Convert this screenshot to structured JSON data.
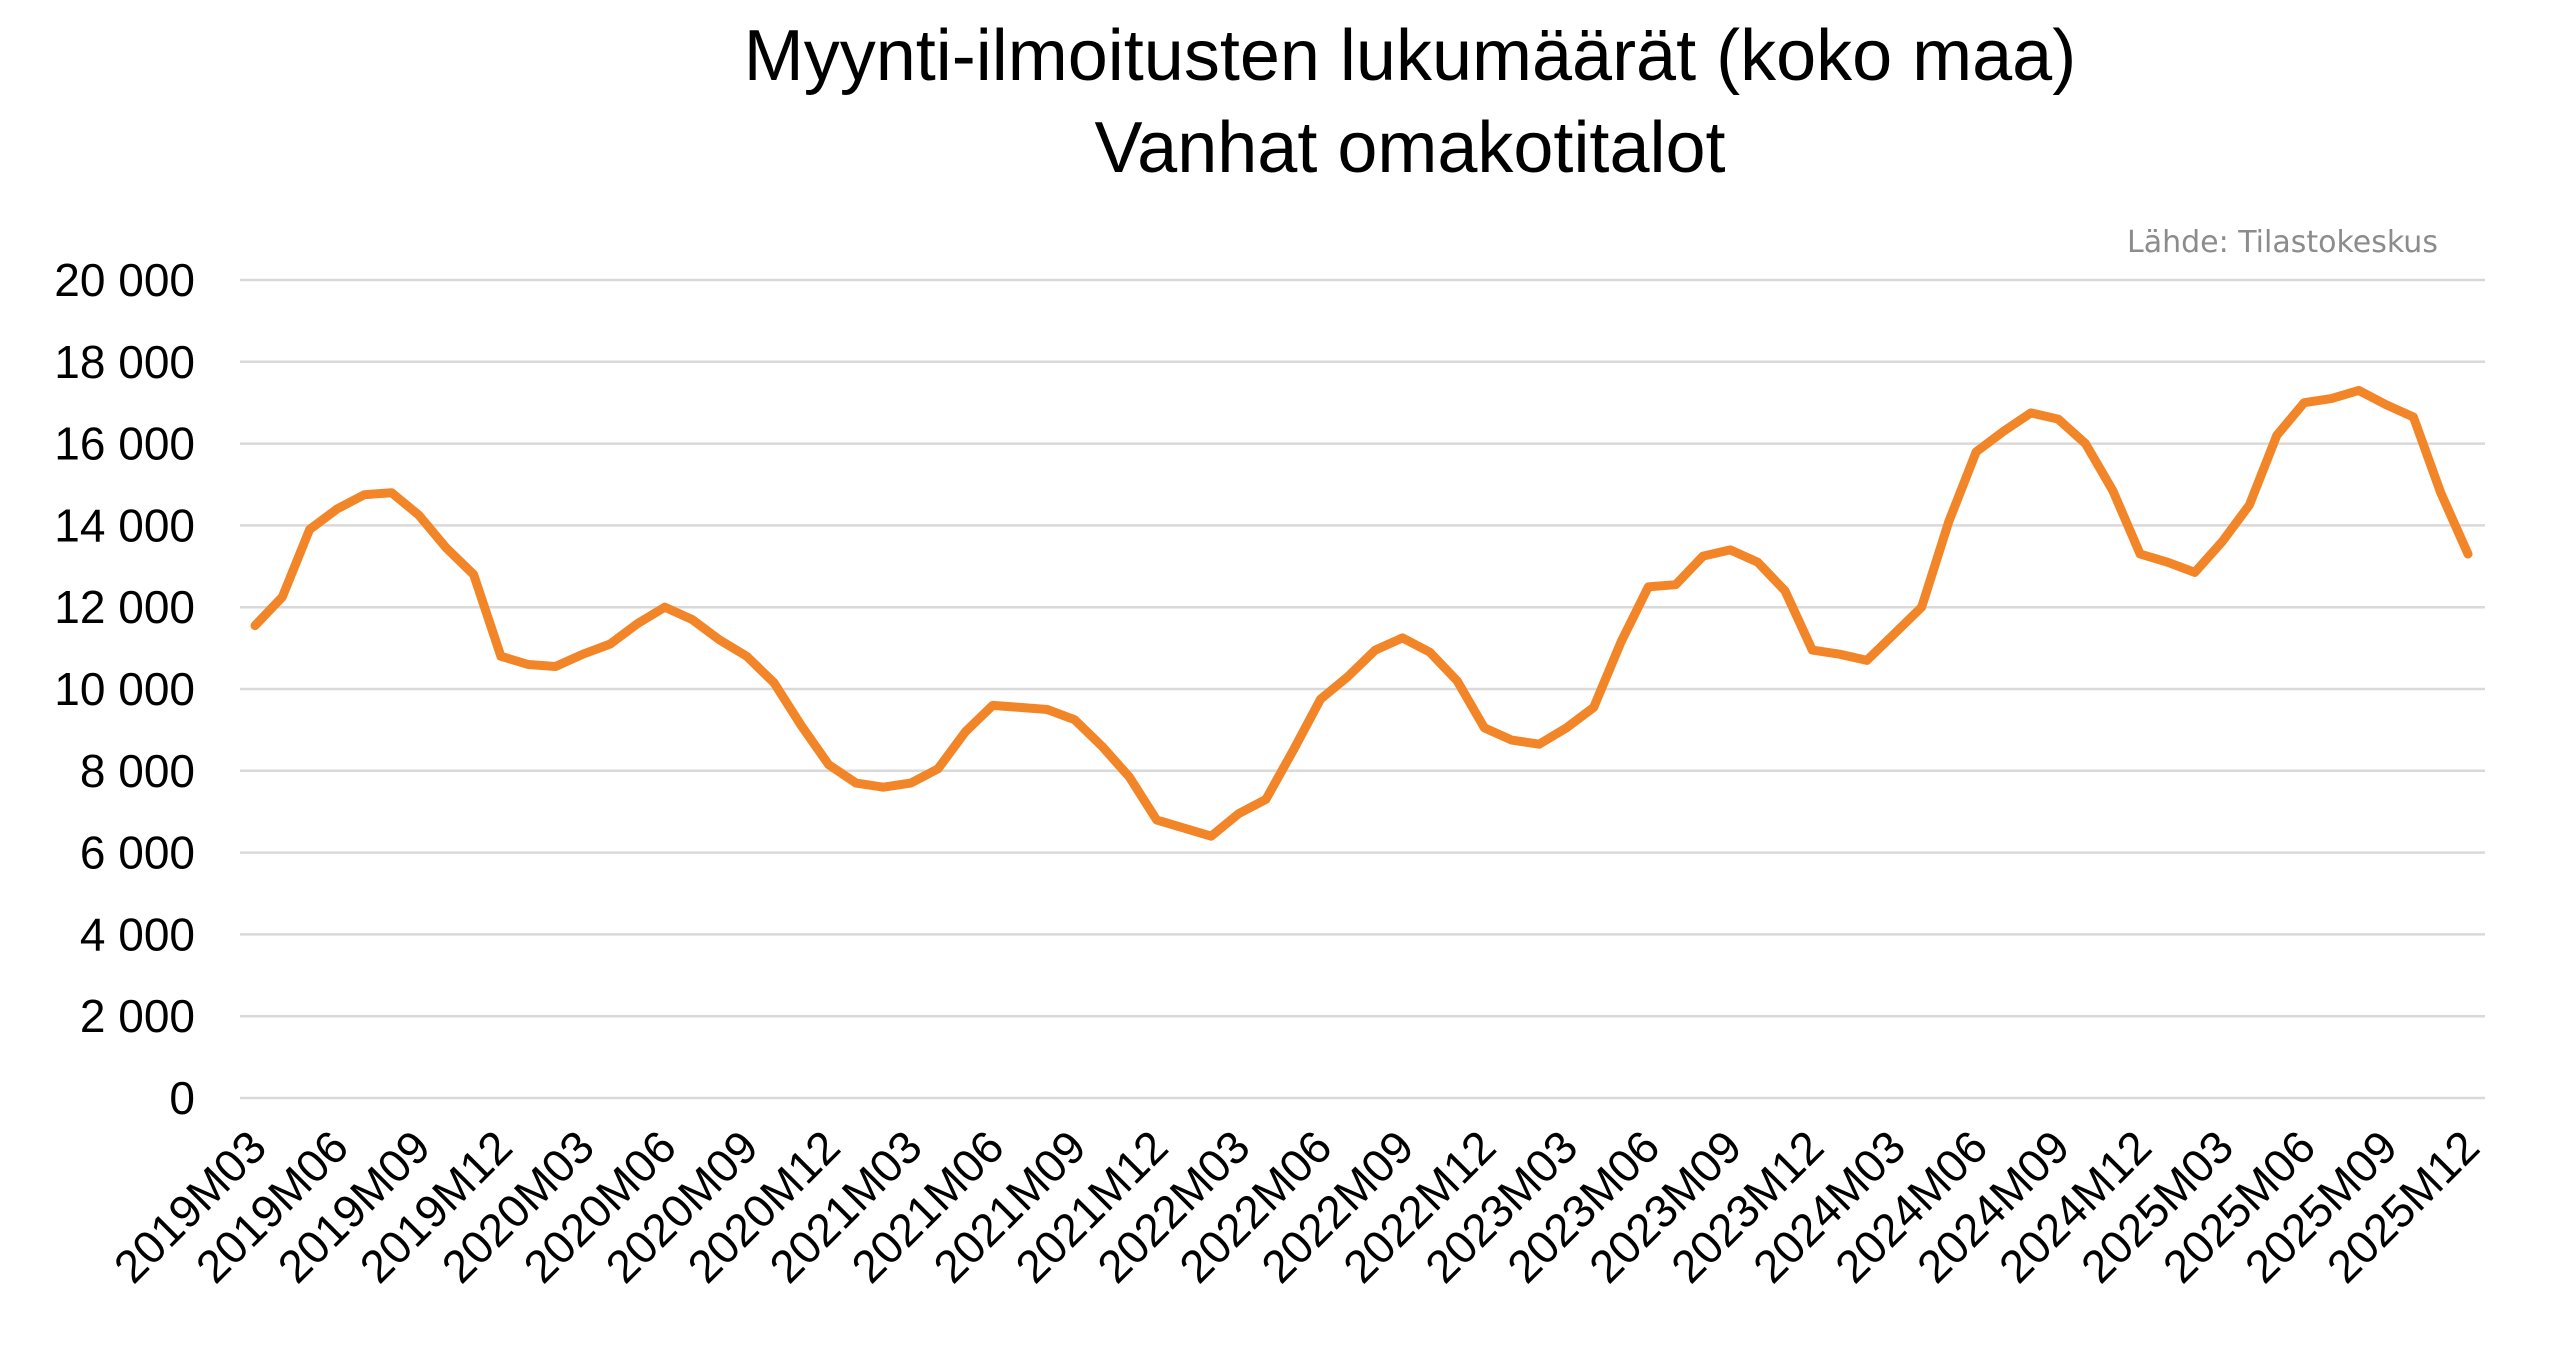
{
  "chart_data": {
    "type": "line",
    "title": "Myynti-ilmoitusten lukumäärät (koko maa)",
    "subtitle": "Vanhat omakotitalot",
    "source": "Lähde: Tilastokeskus",
    "xlabel": "",
    "ylabel": "",
    "ylim": [
      0,
      20000
    ],
    "y_ticks": [
      0,
      2000,
      4000,
      6000,
      8000,
      10000,
      12000,
      14000,
      16000,
      18000,
      20000
    ],
    "y_tick_labels": [
      "0",
      "2 000",
      "4 000",
      "6 000",
      "8 000",
      "10 000",
      "12 000",
      "14 000",
      "16 000",
      "18 000",
      "20 000"
    ],
    "x_tick_labels": [
      "2019M03",
      "2019M06",
      "2019M09",
      "2019M12",
      "2020M03",
      "2020M06",
      "2020M09",
      "2020M12",
      "2021M03",
      "2021M06",
      "2021M09",
      "2021M12",
      "2022M03",
      "2022M06",
      "2022M09",
      "2022M12",
      "2023M03",
      "2023M06",
      "2023M09",
      "2023M12",
      "2024M03",
      "2024M06",
      "2024M09",
      "2024M12",
      "2025M03",
      "2025M06",
      "2025M09",
      "2025M12"
    ],
    "grid": true,
    "legend": "none",
    "line_color": "#F28527",
    "x": [
      "2019M03",
      "2019M04",
      "2019M05",
      "2019M06",
      "2019M07",
      "2019M08",
      "2019M09",
      "2019M10",
      "2019M11",
      "2019M12",
      "2020M01",
      "2020M02",
      "2020M03",
      "2020M04",
      "2020M05",
      "2020M06",
      "2020M07",
      "2020M08",
      "2020M09",
      "2020M10",
      "2020M11",
      "2020M12",
      "2021M01",
      "2021M02",
      "2021M03",
      "2021M04",
      "2021M05",
      "2021M06",
      "2021M07",
      "2021M08",
      "2021M09",
      "2021M10",
      "2021M11",
      "2021M12",
      "2022M01",
      "2022M02",
      "2022M03",
      "2022M04",
      "2022M05",
      "2022M06",
      "2022M07",
      "2022M08",
      "2022M09",
      "2022M10",
      "2022M11",
      "2022M12",
      "2023M01",
      "2023M02",
      "2023M03",
      "2023M04",
      "2023M05",
      "2023M06",
      "2023M07",
      "2023M08",
      "2023M09",
      "2023M10",
      "2023M11",
      "2023M12",
      "2024M01",
      "2024M02",
      "2024M03",
      "2024M04",
      "2024M05",
      "2024M06",
      "2024M07",
      "2024M08",
      "2024M09",
      "2024M10",
      "2024M11",
      "2024M12",
      "2025M01",
      "2025M02",
      "2025M03",
      "2025M04",
      "2025M05",
      "2025M06",
      "2025M07",
      "2025M08",
      "2025M09",
      "2025M10",
      "2025M11",
      "2025M12"
    ],
    "series": [
      {
        "values": [
          11550,
          12250,
          13900,
          14400,
          14750,
          14800,
          14250,
          13450,
          12800,
          10800,
          10600,
          10550,
          10850,
          11100,
          11600,
          12000,
          11700,
          11200,
          10800,
          10150,
          9100,
          8150,
          7700,
          7600,
          7700,
          8050,
          8950,
          9600,
          9550,
          9500,
          9250,
          8600,
          7850,
          6800,
          6600,
          6400,
          6950,
          7300,
          8500,
          9750,
          10300,
          10950,
          11250,
          10900,
          10200,
          9050,
          8750,
          8650,
          9050,
          9550,
          11150,
          12500,
          12550,
          13250,
          13400,
          13100,
          12400,
          10950,
          10850,
          10700,
          11350,
          12000,
          14100,
          15800,
          16300,
          16750,
          16600,
          16000,
          14850,
          13300,
          13100,
          12850,
          13600,
          14500,
          16200,
          17000,
          17100,
          17300,
          16950,
          16650,
          14800,
          13300
        ]
      }
    ]
  }
}
